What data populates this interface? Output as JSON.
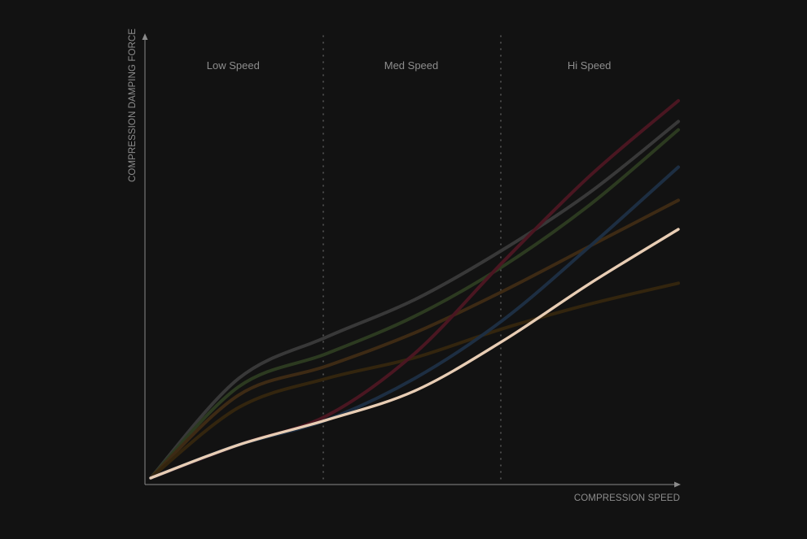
{
  "chart_data": {
    "type": "line",
    "title": "",
    "xlabel": "COMPRESSION SPEED",
    "ylabel": "COMPRESSION DAMPING FORCE",
    "xlim": [
      0,
      3
    ],
    "ylim": [
      0,
      1
    ],
    "grid": false,
    "legend": "none",
    "zones": [
      {
        "label": "Low Speed",
        "from": 0,
        "to": 1
      },
      {
        "label": "Med Speed",
        "from": 1,
        "to": 2
      },
      {
        "label": "Hi Speed",
        "from": 2,
        "to": 3
      }
    ],
    "series": [
      {
        "color": "#383838",
        "width": 4,
        "points": [
          [
            0,
            0
          ],
          [
            0.5,
            0.24
          ],
          [
            1,
            0.34
          ],
          [
            1.5,
            0.43
          ],
          [
            2,
            0.55
          ],
          [
            2.5,
            0.69
          ],
          [
            3,
            0.86
          ]
        ]
      },
      {
        "color": "#2c3a20",
        "width": 4,
        "points": [
          [
            0,
            0
          ],
          [
            0.5,
            0.22
          ],
          [
            1,
            0.3
          ],
          [
            1.5,
            0.39
          ],
          [
            2,
            0.51
          ],
          [
            2.5,
            0.66
          ],
          [
            3,
            0.84
          ]
        ]
      },
      {
        "color": "#3d2a14",
        "width": 4,
        "points": [
          [
            0,
            0
          ],
          [
            0.5,
            0.2
          ],
          [
            1,
            0.27
          ],
          [
            1.5,
            0.35
          ],
          [
            2,
            0.45
          ],
          [
            2.5,
            0.56
          ],
          [
            3,
            0.67
          ]
        ]
      },
      {
        "color": "#33250e",
        "width": 4,
        "points": [
          [
            0,
            0
          ],
          [
            0.5,
            0.17
          ],
          [
            1,
            0.24
          ],
          [
            1.5,
            0.29
          ],
          [
            2,
            0.36
          ],
          [
            2.5,
            0.42
          ],
          [
            3,
            0.47
          ]
        ]
      },
      {
        "color": "#4a1621",
        "width": 4,
        "points": [
          [
            0,
            0
          ],
          [
            0.5,
            0.08
          ],
          [
            1,
            0.15
          ],
          [
            1.5,
            0.3
          ],
          [
            2,
            0.52
          ],
          [
            2.5,
            0.73
          ],
          [
            3,
            0.91
          ]
        ]
      },
      {
        "color": "#1d2e42",
        "width": 4,
        "points": [
          [
            0,
            0
          ],
          [
            0.5,
            0.08
          ],
          [
            1,
            0.14
          ],
          [
            1.5,
            0.24
          ],
          [
            2,
            0.38
          ],
          [
            2.5,
            0.56
          ],
          [
            3,
            0.75
          ]
        ]
      },
      {
        "color": "#e8cdb4",
        "width": 3.4,
        "points": [
          [
            0,
            0
          ],
          [
            0.5,
            0.08
          ],
          [
            1,
            0.14
          ],
          [
            1.5,
            0.21
          ],
          [
            2,
            0.33
          ],
          [
            2.5,
            0.47
          ],
          [
            3,
            0.6
          ]
        ]
      }
    ]
  }
}
